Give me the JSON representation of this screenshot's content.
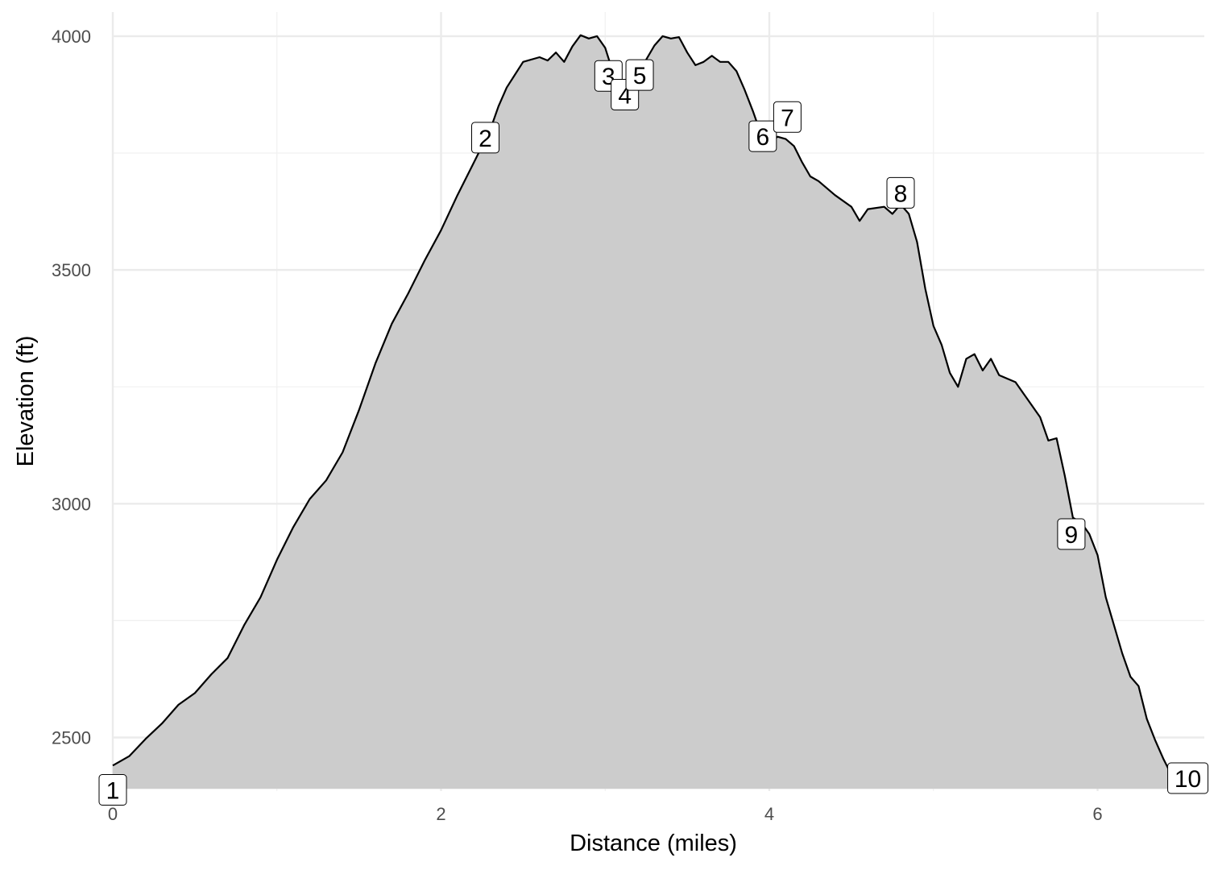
{
  "chart_data": {
    "type": "area",
    "xlabel": "Distance (miles)",
    "ylabel": "Elevation (ft)",
    "xlim": [
      0,
      6.65
    ],
    "ylim": [
      2390,
      4050
    ],
    "x_ticks": [
      {
        "value": 0,
        "label": "0"
      },
      {
        "value": 2,
        "label": "2"
      },
      {
        "value": 4,
        "label": "4"
      },
      {
        "value": 6,
        "label": "6"
      }
    ],
    "y_ticks": [
      {
        "value": 2500,
        "label": "2500"
      },
      {
        "value": 3000,
        "label": "3000"
      },
      {
        "value": 3500,
        "label": "3500"
      },
      {
        "value": 4000,
        "label": "4000"
      }
    ],
    "grid": true,
    "series": [
      {
        "fill_color": "#cccccc",
        "line_color": "#000000",
        "points": [
          [
            0.0,
            2440
          ],
          [
            0.1,
            2460
          ],
          [
            0.2,
            2497
          ],
          [
            0.3,
            2530
          ],
          [
            0.4,
            2570
          ],
          [
            0.5,
            2595
          ],
          [
            0.6,
            2635
          ],
          [
            0.7,
            2670
          ],
          [
            0.8,
            2740
          ],
          [
            0.9,
            2800
          ],
          [
            1.0,
            2880
          ],
          [
            1.1,
            2950
          ],
          [
            1.2,
            3010
          ],
          [
            1.3,
            3050
          ],
          [
            1.4,
            3110
          ],
          [
            1.5,
            3200
          ],
          [
            1.6,
            3300
          ],
          [
            1.7,
            3385
          ],
          [
            1.8,
            3450
          ],
          [
            1.9,
            3520
          ],
          [
            2.0,
            3585
          ],
          [
            2.1,
            3660
          ],
          [
            2.2,
            3730
          ],
          [
            2.3,
            3800
          ],
          [
            2.35,
            3850
          ],
          [
            2.4,
            3890
          ],
          [
            2.5,
            3945
          ],
          [
            2.6,
            3955
          ],
          [
            2.65,
            3948
          ],
          [
            2.7,
            3965
          ],
          [
            2.75,
            3945
          ],
          [
            2.8,
            3978
          ],
          [
            2.85,
            4002
          ],
          [
            2.9,
            3995
          ],
          [
            2.95,
            4000
          ],
          [
            3.0,
            3975
          ],
          [
            3.05,
            3920
          ],
          [
            3.1,
            3885
          ],
          [
            3.15,
            3870
          ],
          [
            3.2,
            3910
          ],
          [
            3.25,
            3950
          ],
          [
            3.3,
            3980
          ],
          [
            3.35,
            4000
          ],
          [
            3.4,
            3995
          ],
          [
            3.45,
            3998
          ],
          [
            3.5,
            3965
          ],
          [
            3.55,
            3938
          ],
          [
            3.6,
            3945
          ],
          [
            3.65,
            3958
          ],
          [
            3.7,
            3945
          ],
          [
            3.75,
            3945
          ],
          [
            3.8,
            3925
          ],
          [
            3.85,
            3885
          ],
          [
            3.9,
            3840
          ],
          [
            3.95,
            3790
          ],
          [
            4.0,
            3770
          ],
          [
            4.05,
            3785
          ],
          [
            4.1,
            3780
          ],
          [
            4.15,
            3765
          ],
          [
            4.2,
            3730
          ],
          [
            4.25,
            3700
          ],
          [
            4.3,
            3690
          ],
          [
            4.4,
            3660
          ],
          [
            4.5,
            3635
          ],
          [
            4.55,
            3605
          ],
          [
            4.6,
            3630
          ],
          [
            4.7,
            3635
          ],
          [
            4.75,
            3620
          ],
          [
            4.8,
            3640
          ],
          [
            4.85,
            3620
          ],
          [
            4.9,
            3560
          ],
          [
            4.95,
            3460
          ],
          [
            5.0,
            3380
          ],
          [
            5.05,
            3340
          ],
          [
            5.1,
            3280
          ],
          [
            5.15,
            3250
          ],
          [
            5.2,
            3310
          ],
          [
            5.25,
            3320
          ],
          [
            5.3,
            3285
          ],
          [
            5.35,
            3310
          ],
          [
            5.4,
            3275
          ],
          [
            5.5,
            3260
          ],
          [
            5.6,
            3210
          ],
          [
            5.65,
            3185
          ],
          [
            5.7,
            3135
          ],
          [
            5.75,
            3140
          ],
          [
            5.8,
            3060
          ],
          [
            5.85,
            2970
          ],
          [
            5.9,
            2960
          ],
          [
            5.95,
            2935
          ],
          [
            6.0,
            2890
          ],
          [
            6.05,
            2800
          ],
          [
            6.1,
            2740
          ],
          [
            6.15,
            2680
          ],
          [
            6.2,
            2630
          ],
          [
            6.25,
            2610
          ],
          [
            6.3,
            2540
          ],
          [
            6.35,
            2495
          ],
          [
            6.4,
            2455
          ],
          [
            6.45,
            2420
          ],
          [
            6.5,
            2390
          ]
        ]
      }
    ],
    "waypoints": [
      {
        "label": "1",
        "x": 0.0,
        "y": 2388
      },
      {
        "label": "2",
        "x": 2.27,
        "y": 3783
      },
      {
        "label": "3",
        "x": 3.02,
        "y": 3915
      },
      {
        "label": "4",
        "x": 3.12,
        "y": 3875
      },
      {
        "label": "5",
        "x": 3.21,
        "y": 3917
      },
      {
        "label": "6",
        "x": 3.96,
        "y": 3786
      },
      {
        "label": "7",
        "x": 4.11,
        "y": 3827
      },
      {
        "label": "8",
        "x": 4.8,
        "y": 3665
      },
      {
        "label": "9",
        "x": 5.84,
        "y": 2935
      },
      {
        "label": "10",
        "x": 6.55,
        "y": 2413
      }
    ]
  }
}
